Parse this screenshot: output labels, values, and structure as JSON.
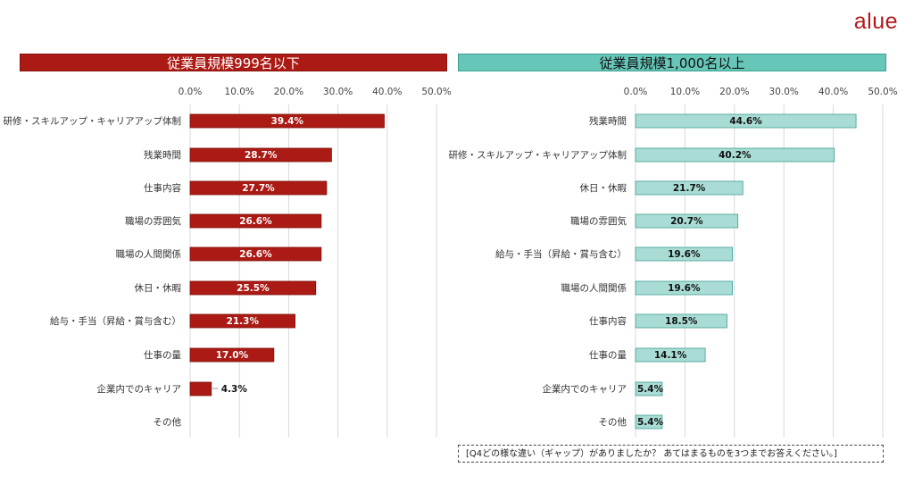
{
  "logo": "alue",
  "note": "[Q4どの様な違い（ギャップ）がありましたか？ あてはまるものを3つまでお答えください。]",
  "colors": {
    "left_bar": "#ab1a14",
    "right_bar": "#a8dcd4",
    "right_bar_border": "#3f9f92",
    "grid": "#d9d9d9"
  },
  "chart_data": [
    {
      "type": "bar",
      "orientation": "horizontal",
      "title": "従業員規模999名以下",
      "xlim": [
        0,
        50
      ],
      "ticks": [
        "0.0%",
        "10.0%",
        "20.0%",
        "30.0%",
        "40.0%",
        "50.0%"
      ],
      "grid": true,
      "categories": [
        "研修・スキルアップ・キャリアアップ体制",
        "残業時間",
        "仕事内容",
        "職場の雰囲気",
        "職場の人間関係",
        "休日・休暇",
        "給与・手当（昇給・賞与含む）",
        "仕事の量",
        "企業内でのキャリア",
        "その他"
      ],
      "values": [
        39.4,
        28.7,
        27.7,
        26.6,
        26.6,
        25.5,
        21.3,
        17.0,
        4.3,
        0
      ],
      "labels": [
        "39.4%",
        "28.7%",
        "27.7%",
        "26.6%",
        "26.6%",
        "25.5%",
        "21.3%",
        "17.0%",
        "4.3%",
        ""
      ]
    },
    {
      "type": "bar",
      "orientation": "horizontal",
      "title": "従業員規模1,000名以上",
      "xlim": [
        0,
        50
      ],
      "ticks": [
        "0.0%",
        "10.0%",
        "20.0%",
        "30.0%",
        "40.0%",
        "50.0%"
      ],
      "grid": true,
      "categories": [
        "残業時間",
        "研修・スキルアップ・キャリアアップ体制",
        "休日・休暇",
        "職場の雰囲気",
        "給与・手当（昇給・賞与含む）",
        "職場の人間関係",
        "仕事内容",
        "仕事の量",
        "企業内でのキャリア",
        "その他"
      ],
      "values": [
        44.6,
        40.2,
        21.7,
        20.7,
        19.6,
        19.6,
        18.5,
        14.1,
        5.4,
        5.4
      ],
      "labels": [
        "44.6%",
        "40.2%",
        "21.7%",
        "20.7%",
        "19.6%",
        "19.6%",
        "18.5%",
        "14.1%",
        "5.4%",
        "5.4%"
      ]
    }
  ]
}
